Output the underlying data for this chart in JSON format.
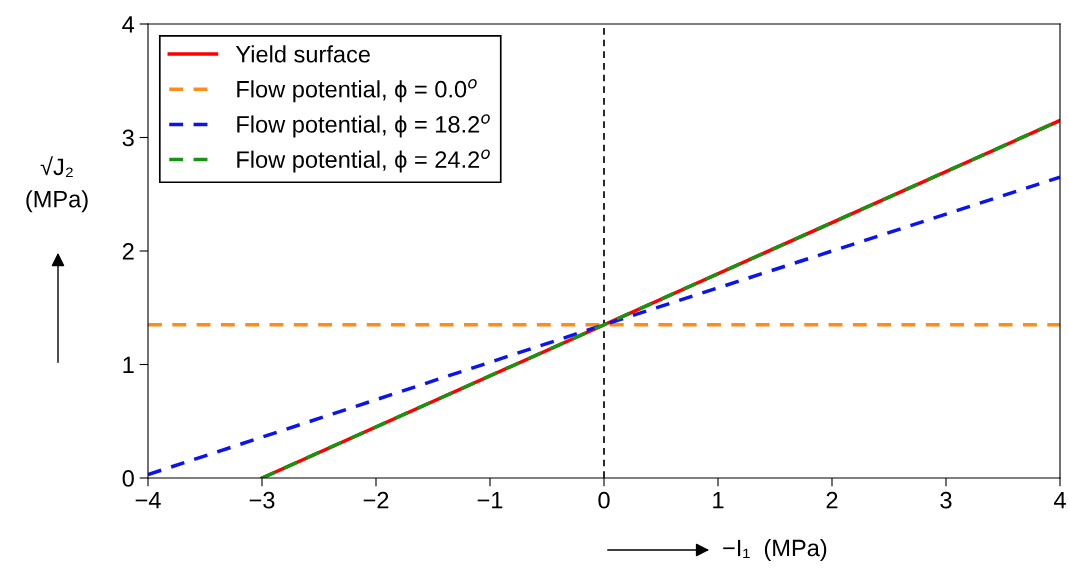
{
  "chart_data": {
    "type": "line",
    "xlabel": "−I₁  (MPa)",
    "ylabel": "√J₂\n(MPa)",
    "xlim": [
      -4,
      4
    ],
    "ylim": [
      0,
      4
    ],
    "xticks": [
      {
        "value": -4,
        "label": "−4"
      },
      {
        "value": -3,
        "label": "−3"
      },
      {
        "value": -2,
        "label": "−2"
      },
      {
        "value": -1,
        "label": "−1"
      },
      0,
      1,
      2,
      3,
      4
    ],
    "yticks": [
      0,
      1,
      2,
      3,
      4
    ],
    "series": [
      {
        "name": "Yield surface",
        "color": "#ff0000",
        "line_style": "solid",
        "x": [
          -3,
          4
        ],
        "values": [
          0,
          3.15
        ]
      },
      {
        "name": "Flow potential, ϕ = 0.0$^{o}$",
        "color": "#ff8c1a",
        "line_style": "dashed",
        "x": [
          -4,
          4
        ],
        "values": [
          1.35,
          1.35
        ]
      },
      {
        "name": "Flow potential, ϕ = 18.2$^{o}$",
        "color": "#0a14f0",
        "line_style": "dashed",
        "x": [
          -4,
          0,
          4
        ],
        "values": [
          0.03,
          1.35,
          2.65
        ]
      },
      {
        "name": "Flow potential, ϕ = 24.2$^{o}$",
        "color": "#149614",
        "line_style": "dashed",
        "x": [
          -3,
          4
        ],
        "values": [
          0,
          3.15
        ]
      }
    ],
    "ref_lines": [
      {
        "axis": "x",
        "value": 0,
        "color": "#000000",
        "line_style": "dashed"
      }
    ],
    "grid": false,
    "legend": "top left",
    "marker": "none"
  }
}
